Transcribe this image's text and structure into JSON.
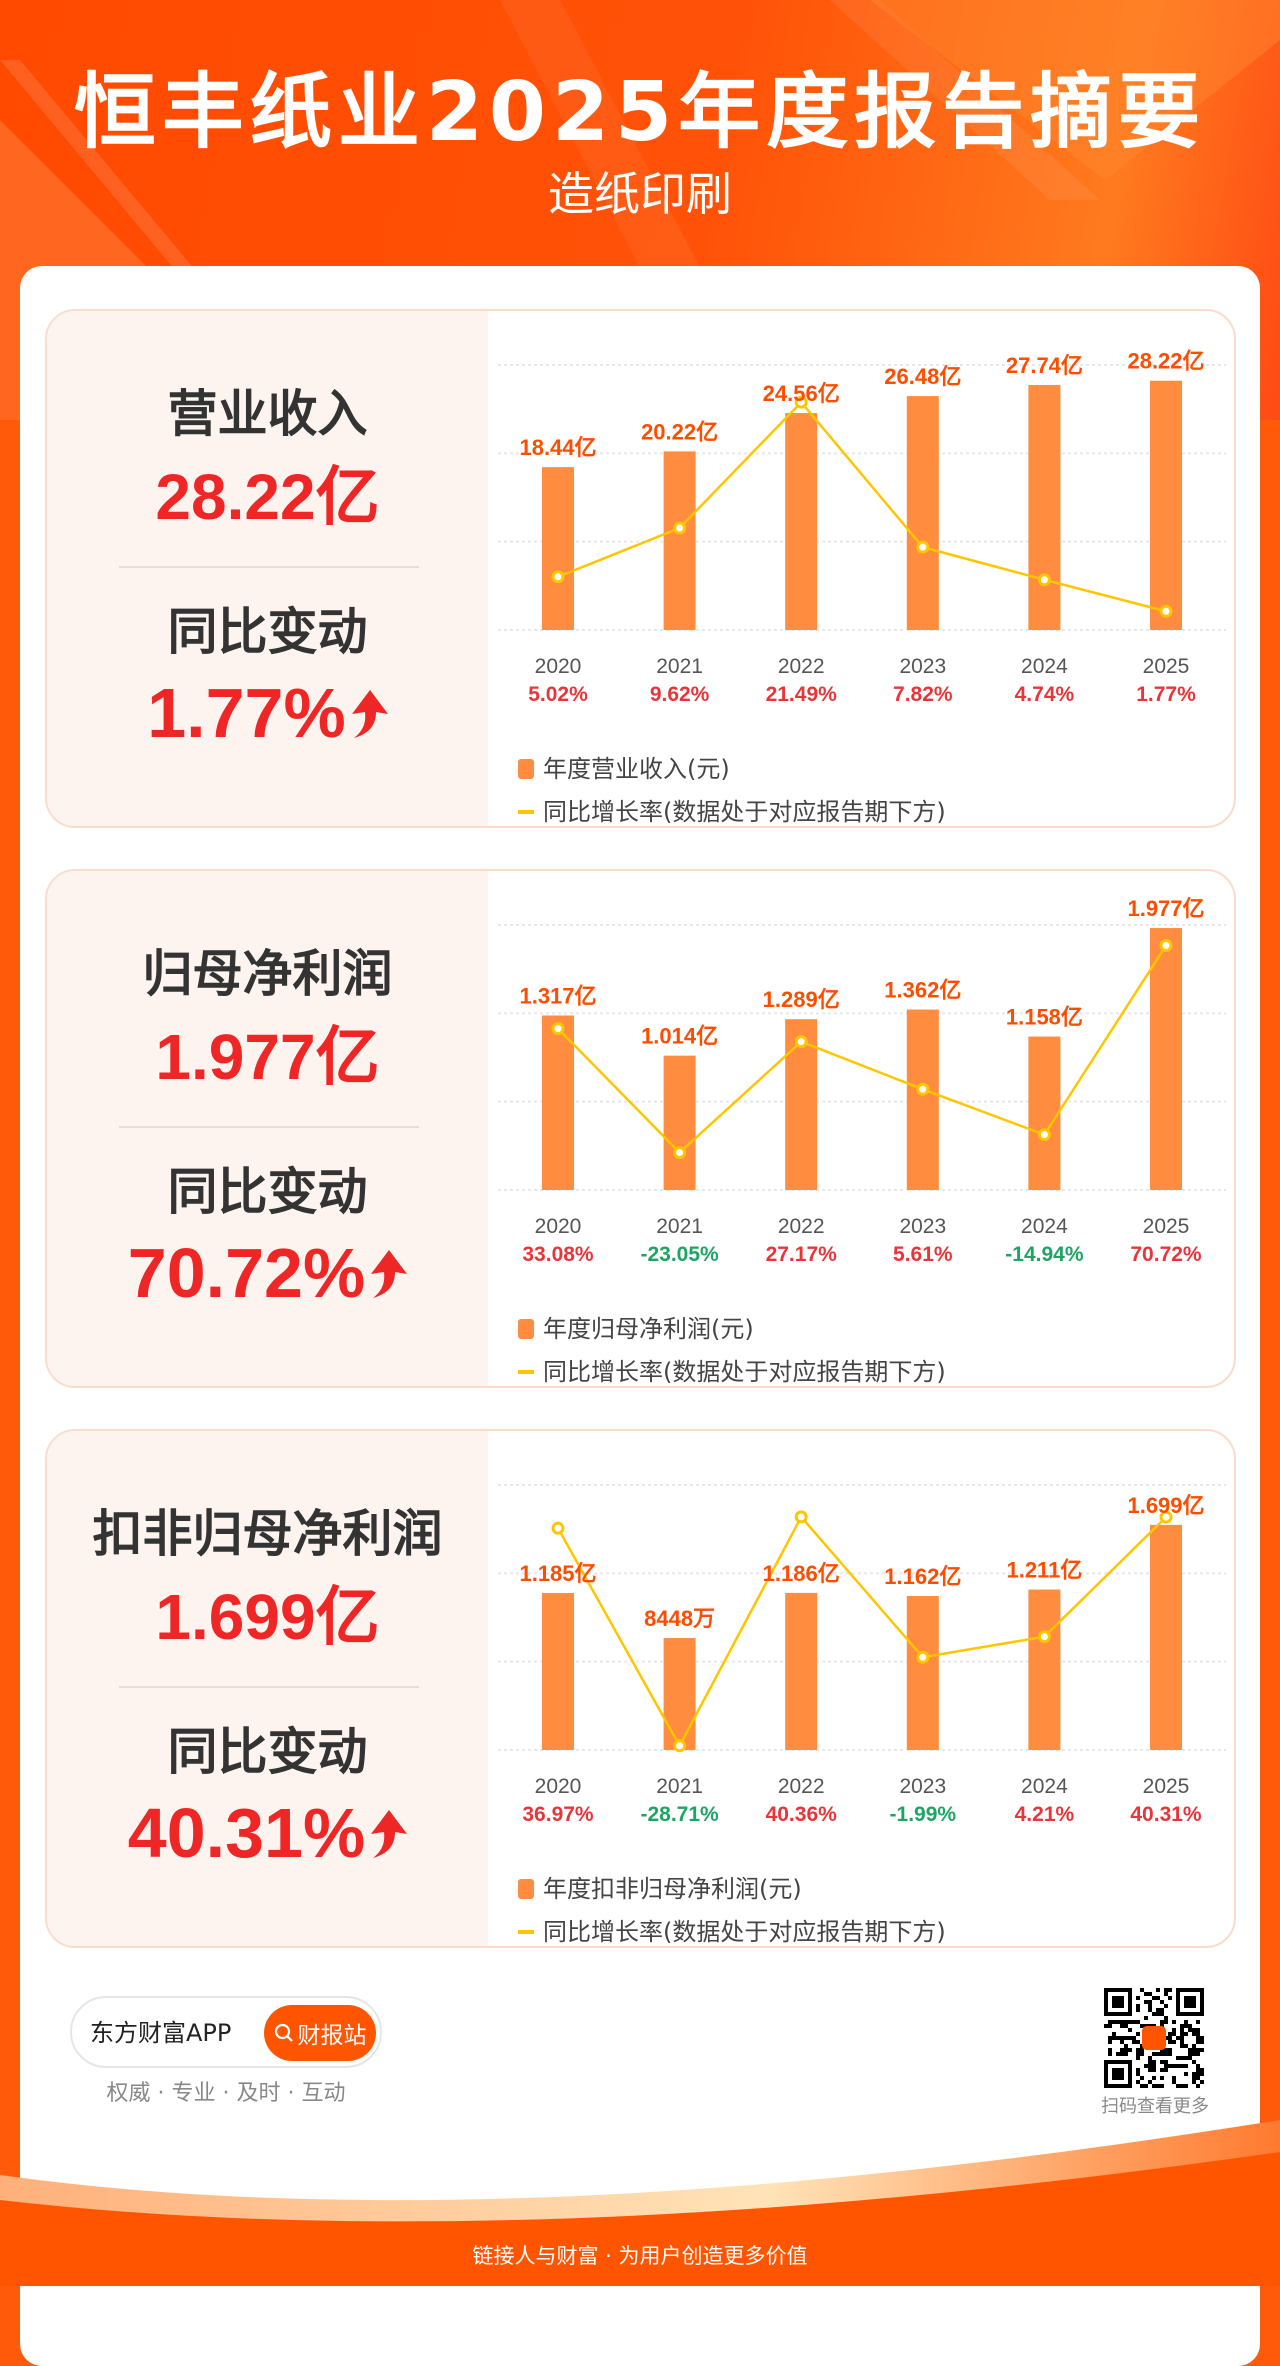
{
  "header": {
    "title": "恒丰纸业2025年度报告摘要",
    "subtitle": "造纸印刷"
  },
  "colors": {
    "accent": "#ff5500",
    "bar": "#ff8c3f",
    "line": "#ffc600",
    "value_label": "#ff4d00",
    "up": "#e8353a",
    "down": "#1ea463",
    "headline": "#ef2626"
  },
  "panels": [
    {
      "label": "营业收入",
      "value": "28.22亿",
      "yoy_label": "同比变动",
      "yoy_value": "1.77%",
      "trend_icon": "arrow-up-icon",
      "legend_bar": "年度营业收入(元)",
      "legend_line": "同比增长率(数据处于对应报告期下方)"
    },
    {
      "label": "归母净利润",
      "value": "1.977亿",
      "yoy_label": "同比变动",
      "yoy_value": "70.72%",
      "trend_icon": "arrow-up-icon",
      "legend_bar": "年度归母净利润(元)",
      "legend_line": "同比增长率(数据处于对应报告期下方)"
    },
    {
      "label": "扣非归母净利润",
      "value": "1.699亿",
      "yoy_label": "同比变动",
      "yoy_value": "40.31%",
      "trend_icon": "arrow-up-icon",
      "legend_bar": "年度扣非归母净利润(元)",
      "legend_line": "同比增长率(数据处于对应报告期下方)"
    }
  ],
  "chart_data": [
    {
      "type": "bar",
      "title": "营业收入",
      "categories": [
        "2020",
        "2021",
        "2022",
        "2023",
        "2024",
        "2025"
      ],
      "series": [
        {
          "name": "年度营业收入(元)",
          "unit": "亿",
          "values": [
            18.44,
            20.22,
            24.56,
            26.48,
            27.74,
            28.22
          ],
          "labels": [
            "18.44亿",
            "20.22亿",
            "24.56亿",
            "26.48亿",
            "27.74亿",
            "28.22亿"
          ]
        },
        {
          "name": "同比增长率",
          "type": "line",
          "unit": "%",
          "values": [
            5.02,
            9.62,
            21.49,
            7.82,
            4.74,
            1.77
          ],
          "labels": [
            "5.02%",
            "9.62%",
            "21.49%",
            "7.82%",
            "4.74%",
            "1.77%"
          ]
        }
      ],
      "ylim": [
        0,
        30
      ],
      "line_ylim": [
        0,
        25
      ],
      "grid": true,
      "legend": "bottom-left"
    },
    {
      "type": "bar",
      "title": "归母净利润",
      "categories": [
        "2020",
        "2021",
        "2022",
        "2023",
        "2024",
        "2025"
      ],
      "series": [
        {
          "name": "年度归母净利润(元)",
          "unit": "亿",
          "values": [
            1.317,
            1.014,
            1.289,
            1.362,
            1.158,
            1.977
          ],
          "labels": [
            "1.317亿",
            "1.014亿",
            "1.289亿",
            "1.362亿",
            "1.158亿",
            "1.977亿"
          ]
        },
        {
          "name": "同比增长率",
          "type": "line",
          "unit": "%",
          "values": [
            33.08,
            -23.05,
            27.17,
            5.61,
            -14.94,
            70.72
          ],
          "labels": [
            "33.08%",
            "-23.05%",
            "27.17%",
            "5.61%",
            "-14.94%",
            "70.72%"
          ]
        }
      ],
      "ylim": [
        0,
        2
      ],
      "line_ylim": [
        -40,
        80
      ],
      "grid": true,
      "legend": "bottom-left"
    },
    {
      "type": "bar",
      "title": "扣非归母净利润",
      "categories": [
        "2020",
        "2021",
        "2022",
        "2023",
        "2024",
        "2025"
      ],
      "series": [
        {
          "name": "年度扣非归母净利润(元)",
          "unit": "亿",
          "values": [
            1.185,
            0.8448,
            1.186,
            1.162,
            1.211,
            1.699
          ],
          "labels": [
            "1.185亿",
            "8448万",
            "1.186亿",
            "1.162亿",
            "1.211亿",
            "1.699亿"
          ]
        },
        {
          "name": "同比增长率",
          "type": "line",
          "unit": "%",
          "values": [
            36.97,
            -28.71,
            40.36,
            -1.99,
            4.21,
            40.31
          ],
          "labels": [
            "36.97%",
            "-28.71%",
            "40.36%",
            "-1.99%",
            "4.21%",
            "40.31%"
          ]
        }
      ],
      "ylim": [
        0,
        2
      ],
      "line_ylim": [
        -30,
        50
      ],
      "grid": true,
      "legend": "bottom-left"
    }
  ],
  "footer": {
    "app_name": "东方财富APP",
    "button": "财报站",
    "tagline": "权威 · 专业 · 及时 · 互动",
    "qr_caption": "扫码查看更多",
    "slogan": "链接人与财富 · 为用户创造更多价值"
  }
}
